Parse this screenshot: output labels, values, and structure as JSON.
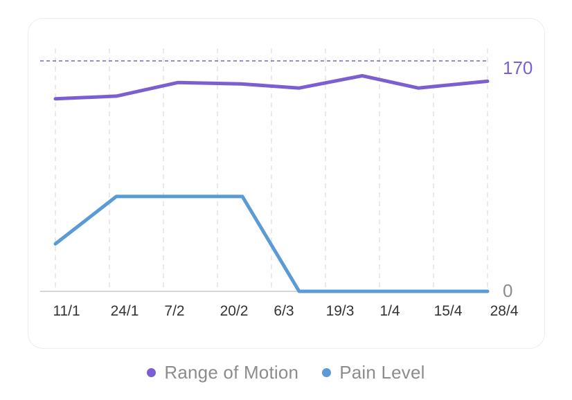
{
  "chart_data": {
    "type": "line",
    "categories": [
      "11/1",
      "24/1",
      "7/2",
      "20/2",
      "6/3",
      "19/3",
      "1/4",
      "15/4",
      "28/4"
    ],
    "x": [
      "11/1",
      "24/1",
      "7/2",
      "20/2",
      "6/3",
      "19/3",
      "1/4",
      "15/4",
      "28/4"
    ],
    "grid": true,
    "legend_position": "bottom",
    "y_ticks_right": [
      "170",
      "0"
    ],
    "ylim": [
      0,
      170
    ],
    "reference_line": {
      "value": 170,
      "style": "dashed",
      "color": "#7b5fd0"
    },
    "series": [
      {
        "name": "Range of Motion",
        "color": "#7b5fd0",
        "points": [
          {
            "x": "11/1",
            "y": 142
          },
          {
            "x": "24/1",
            "y": 144
          },
          {
            "x": "7/2",
            "y": 154
          },
          {
            "x": "20/2",
            "y": 153
          },
          {
            "x": "6/3",
            "y": 150
          },
          {
            "x": "19/3",
            "y": 159
          },
          {
            "x": "1/4",
            "y": 150
          },
          {
            "x": "15/4",
            "y": 155
          }
        ]
      },
      {
        "name": "Pain Level",
        "color": "#5b9bd5",
        "points": [
          {
            "x": "11/1",
            "y": 35
          },
          {
            "x": "24/1",
            "y": 70
          },
          {
            "x": "20/2",
            "y": 70
          },
          {
            "x": "6/3",
            "y": 0
          },
          {
            "x": "28/4",
            "y": 0
          }
        ]
      }
    ]
  },
  "legend": [
    {
      "label": "Range of Motion",
      "color": "#7b5fd0"
    },
    {
      "label": "Pain Level",
      "color": "#5b9bd5"
    }
  ]
}
